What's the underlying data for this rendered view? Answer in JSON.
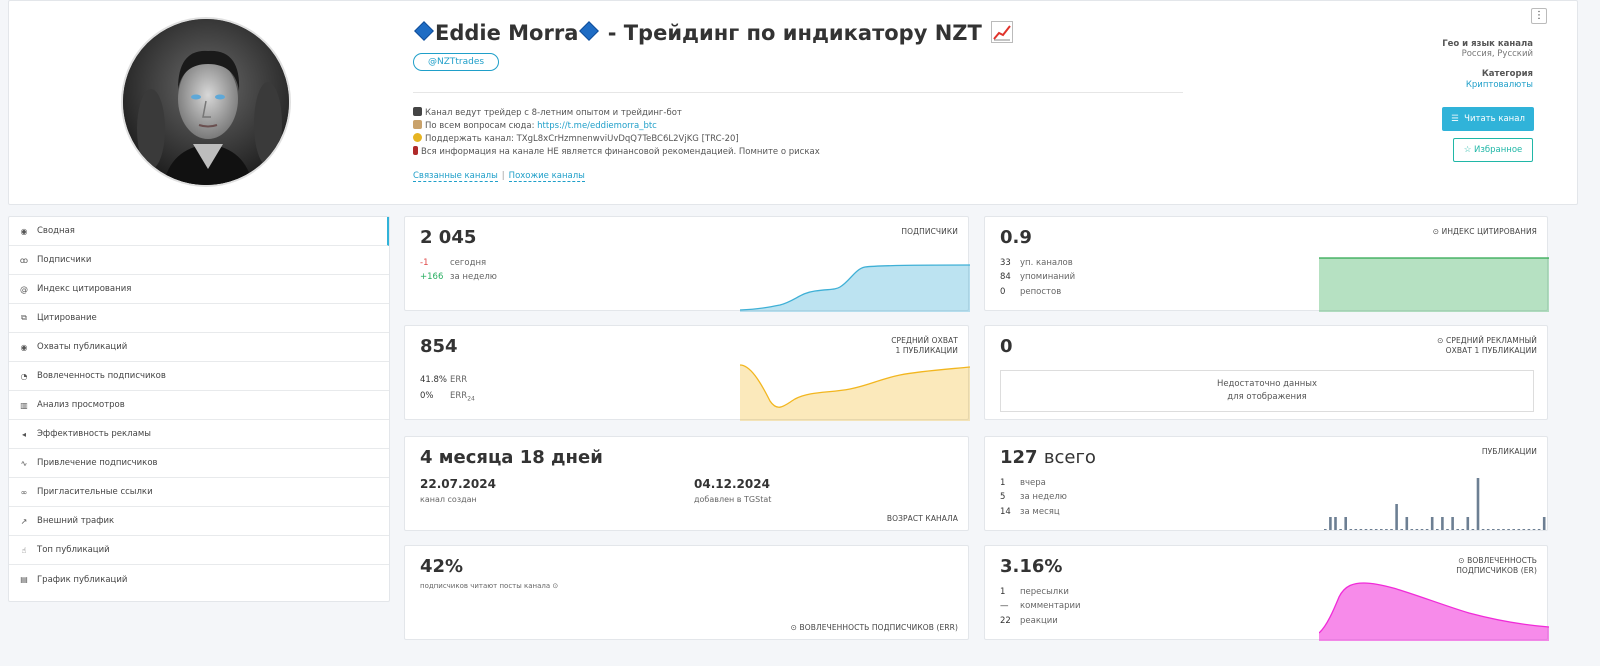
{
  "channel": {
    "title": "Eddie Morra",
    "title_suffix": "- Трейдинг по индикатору NZT",
    "username": "@NZTtrades",
    "description": [
      {
        "icon": "laptop-icon",
        "color": "#444",
        "text": "Канал ведут трейдер с 8-летним опытом и трейдинг-бот"
      },
      {
        "icon": "memo-icon",
        "color": "#c9a26b",
        "text": "По всем вопросам сюда: ",
        "link": "https://t.me/eddiemorra_btc"
      },
      {
        "icon": "coin-icon",
        "color": "#e6b422",
        "text": "Поддержать канал: TXgL8xCrHzmnenwviUvDqQ7TeBC6L2VjKG [TRC-20]"
      },
      {
        "icon": "book-icon",
        "color": "#b02a2a",
        "text": "Вся информация на канале НЕ является финансовой рекомендацией. Помните о рисках"
      }
    ],
    "related_label": "Связанные каналы",
    "similar_label": "Похожие каналы"
  },
  "meta": {
    "geo_label": "Гео и язык канала",
    "geo_value": "Россия, Русский",
    "category_label": "Категория",
    "category_value": "Криптовалюты",
    "read_button": "Читать канал",
    "fav_button": "Избранное",
    "menu_icon": "⋮"
  },
  "sidebar": {
    "items": [
      {
        "label": "Сводная",
        "icon": "summary-icon",
        "glyph": "◉",
        "active": true
      },
      {
        "label": "Подписчики",
        "icon": "users-icon",
        "glyph": "ꝏ"
      },
      {
        "label": "Индекс цитирования",
        "icon": "at-icon",
        "glyph": "@"
      },
      {
        "label": "Цитирование",
        "icon": "quote-icon",
        "glyph": "⧉"
      },
      {
        "label": "Охваты публикаций",
        "icon": "eye-icon",
        "glyph": "◉"
      },
      {
        "label": "Вовлеченность подписчиков",
        "icon": "engagement-icon",
        "glyph": "◔"
      },
      {
        "label": "Анализ просмотров",
        "icon": "bar-chart-icon",
        "glyph": "▥"
      },
      {
        "label": "Эффективность рекламы",
        "icon": "megaphone-icon",
        "glyph": "◂"
      },
      {
        "label": "Привлечение подписчиков",
        "icon": "trend-icon",
        "glyph": "∿"
      },
      {
        "label": "Пригласительные ссылки",
        "icon": "link-icon",
        "glyph": "∞"
      },
      {
        "label": "Внешний трафик",
        "icon": "arrow-icon",
        "glyph": "↗"
      },
      {
        "label": "Топ публикаций",
        "icon": "thumb-icon",
        "glyph": "☝"
      },
      {
        "label": "График публикаций",
        "icon": "calendar-icon",
        "glyph": "▤"
      }
    ]
  },
  "subscribers": {
    "value": "2 045",
    "label": "ПОДПИСЧИКИ",
    "today_value": "-1",
    "today_label": "сегодня",
    "week_value": "+166",
    "week_label": "за неделю",
    "color": "#3fb0d6"
  },
  "citation": {
    "value": "0.9",
    "label": "ИНДЕКС ЦИТИРОВАНИЯ",
    "rows": [
      {
        "n": "33",
        "label": "уп. каналов"
      },
      {
        "n": "84",
        "label": "упоминаний"
      },
      {
        "n": "0",
        "label": "репостов"
      }
    ],
    "color": "#2ea84f"
  },
  "reach": {
    "value": "854",
    "label_line1": "СРЕДНИЙ ОХВАТ",
    "label_line2": "1 ПУБЛИКАЦИИ",
    "err_value": "41.8%",
    "err_label": "ERR",
    "err24_value": "0%",
    "err24_label": "ERR",
    "err24_sub": "24",
    "color": "#f2b61f"
  },
  "ad_reach": {
    "value": "0",
    "label_line1": "СРЕДНИЙ РЕКЛАМНЫЙ",
    "label_line2": "ОХВАТ 1 ПУБЛИКАЦИИ",
    "nodata_line1": "Недостаточно данных",
    "nodata_line2": "для отображения"
  },
  "age": {
    "value": "4 месяца 18 дней",
    "created_date": "22.07.2024",
    "created_label": "канал создан",
    "added_date": "04.12.2024",
    "added_label": "добавлен в TGStat",
    "label": "ВОЗРАСТ КАНАЛА"
  },
  "posts": {
    "value": "127",
    "value_suffix": "всего",
    "label": "ПУБЛИКАЦИИ",
    "rows": [
      {
        "n": "1",
        "label": "вчера"
      },
      {
        "n": "5",
        "label": "за неделю"
      },
      {
        "n": "14",
        "label": "за месяц"
      }
    ],
    "bars": [
      0,
      1,
      1,
      0,
      1,
      0,
      0,
      0,
      0,
      0,
      0,
      0,
      0,
      0,
      2,
      0,
      1,
      0,
      0,
      0,
      0,
      1,
      0,
      1,
      0,
      1,
      0,
      0,
      1,
      0,
      4,
      0,
      0,
      0,
      0,
      0,
      0,
      0,
      0,
      0,
      0,
      0,
      0,
      1
    ],
    "color": "#6d7f93"
  },
  "err_card": {
    "value": "42%",
    "caption": "подписчиков читают посты канала",
    "label": "ВОВЛЕЧЕННОСТЬ ПОДПИСЧИКОВ (ERR)"
  },
  "engagement": {
    "value": "3.16%",
    "label_line1": "ВОВЛЕЧЕННОСТЬ",
    "label_line2": "ПОДПИСЧИКОВ (ER)",
    "rows": [
      {
        "n": "1",
        "label": "пересылки"
      },
      {
        "n": "—",
        "label": "комментарии"
      },
      {
        "n": "22",
        "label": "реакции"
      }
    ],
    "color": "#f02bd8"
  }
}
